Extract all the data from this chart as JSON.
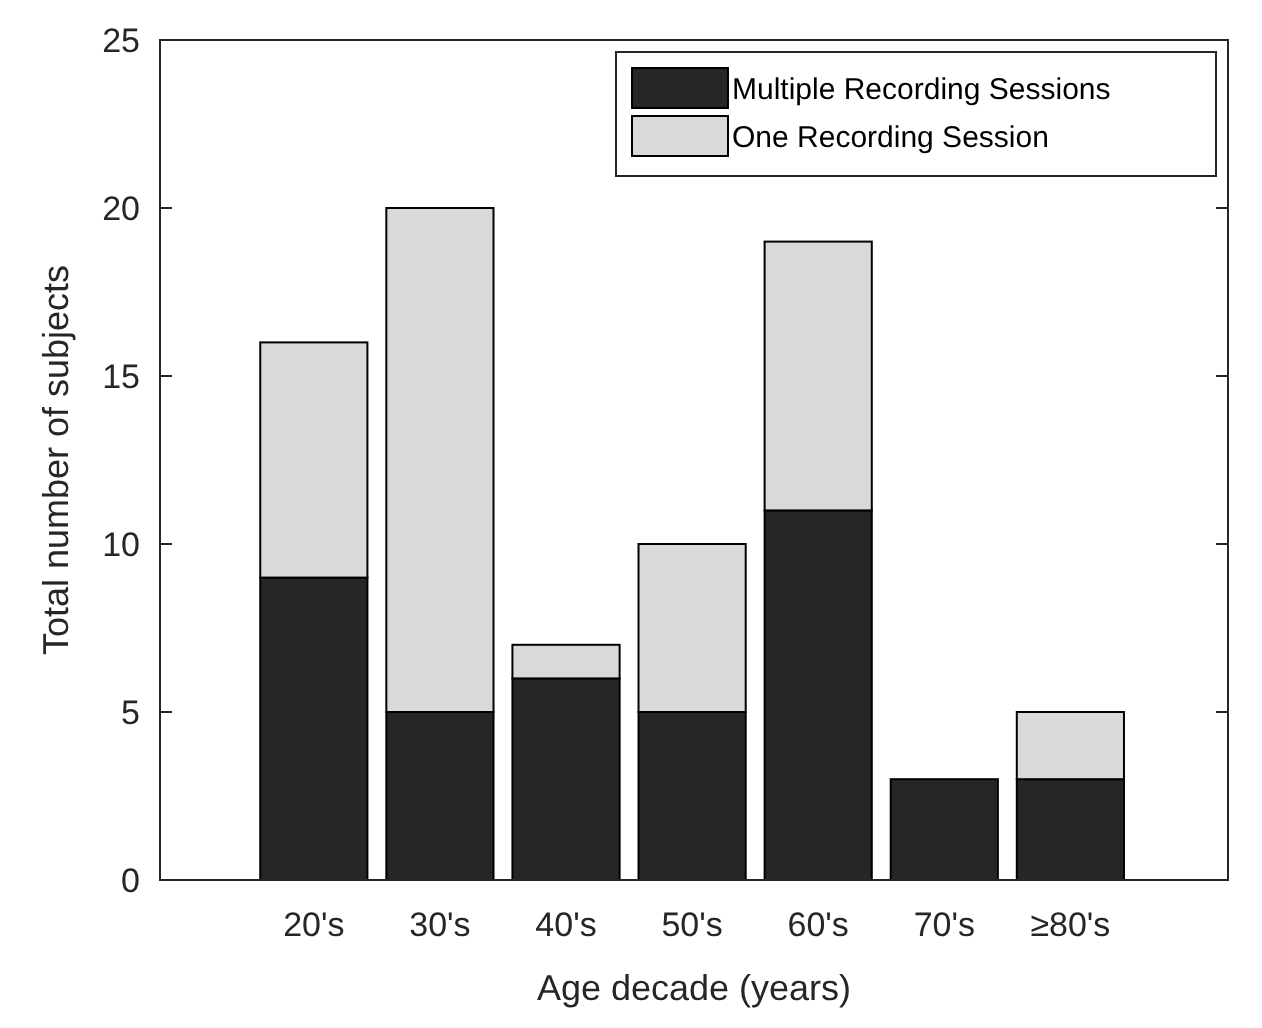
{
  "chart_data": {
    "type": "bar",
    "xlabel": "Age decade (years)",
    "ylabel": "Total number of subjects",
    "categories": [
      "20's",
      "30's",
      "40's",
      "50's",
      "60's",
      "70's",
      "≥80's"
    ],
    "stacked": true,
    "ylim": [
      0,
      25
    ],
    "yticks": [
      0,
      5,
      10,
      15,
      20,
      25
    ],
    "legend": "top right",
    "grid": false,
    "series": [
      {
        "name": "Multiple Recording Sessions",
        "color": "#262626",
        "values": [
          9,
          5,
          6,
          5,
          11,
          3,
          3
        ]
      },
      {
        "name": "One Recording Session",
        "color": "#d9d9d9",
        "values": [
          7,
          15,
          1,
          5,
          8,
          0,
          2
        ]
      }
    ]
  }
}
